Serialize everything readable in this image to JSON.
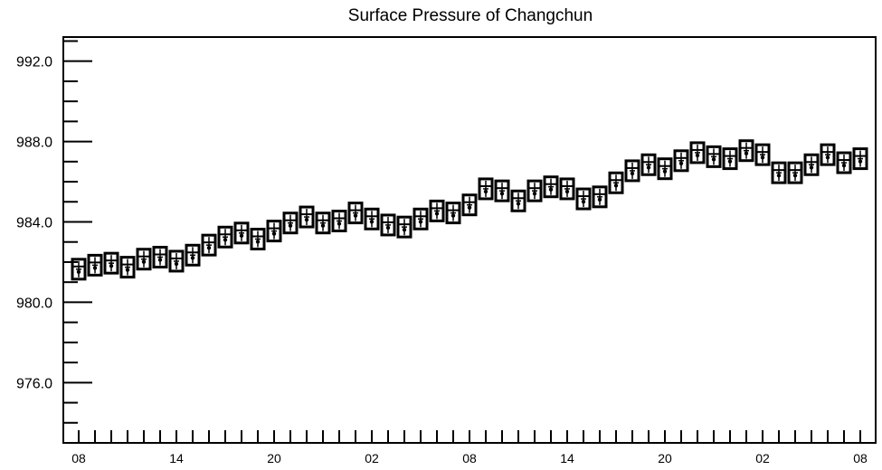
{
  "chart_data": {
    "type": "box",
    "title": "Surface Pressure of Changchun",
    "xlabel": "",
    "ylabel": "",
    "ylim": [
      973,
      993.2
    ],
    "y_ticks": [
      976.0,
      980.0,
      984.0,
      988.0,
      992.0
    ],
    "y_tick_labels": [
      "976.0",
      "980.0",
      "984.0",
      "988.0",
      "992.0"
    ],
    "x_tick_labels": [
      {
        "index": 0,
        "label": "08"
      },
      {
        "index": 6,
        "label": "14"
      },
      {
        "index": 12,
        "label": "20"
      },
      {
        "index": 18,
        "label": "02"
      },
      {
        "index": 24,
        "label": "08"
      },
      {
        "index": 30,
        "label": "14"
      },
      {
        "index": 36,
        "label": "20"
      },
      {
        "index": 42,
        "label": "02"
      },
      {
        "index": 48,
        "label": "08"
      }
    ],
    "series": [
      {
        "values": [
          981.6,
          981.8,
          981.9,
          981.7,
          982.1,
          982.2,
          982.0,
          982.3,
          982.8,
          983.2,
          983.4,
          983.1,
          983.5,
          983.9,
          984.2,
          983.9,
          984.0,
          984.4,
          984.1,
          983.8,
          983.7,
          984.1,
          984.5,
          984.4,
          984.8,
          985.6,
          985.5,
          985.0,
          985.5,
          985.7,
          985.6,
          985.1,
          985.2,
          985.9,
          986.5,
          986.8,
          986.6,
          987.0,
          987.4,
          987.2,
          987.1,
          987.5,
          987.3,
          986.4,
          986.4,
          986.8,
          987.3,
          986.9,
          987.1
        ]
      }
    ]
  }
}
